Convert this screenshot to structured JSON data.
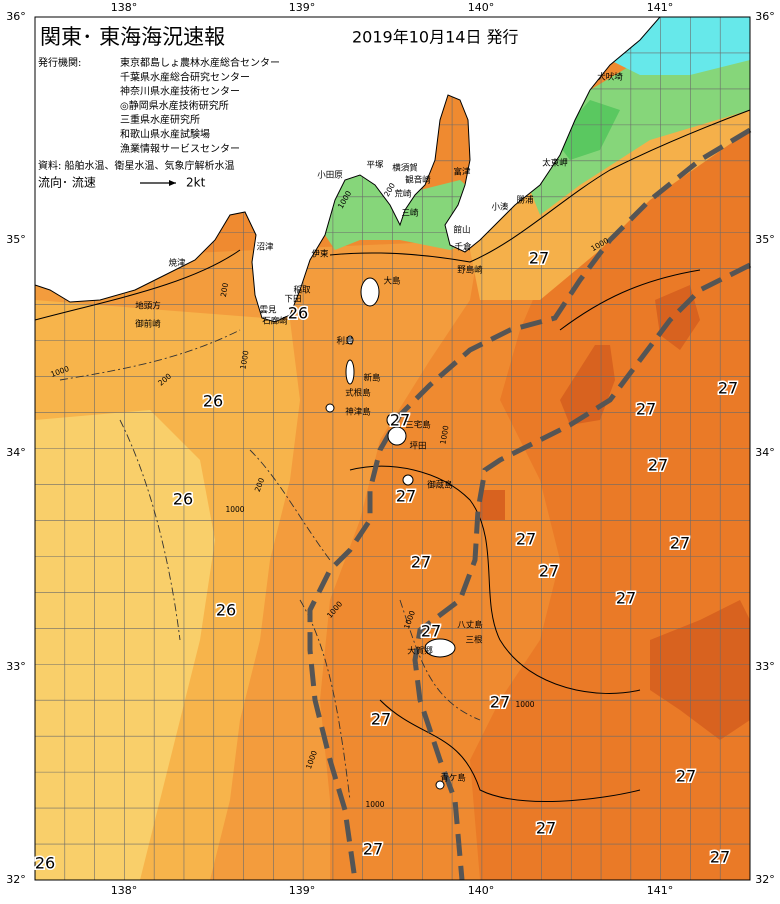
{
  "header": {
    "title": "関東･ 東海海況速報",
    "issued": "2019年10月14日 発行"
  },
  "publishers": {
    "label": "発行機関:",
    "items": [
      "東京都島しょ農林水産総合センター",
      "千葉県水産総合研究センター",
      "神奈川県水産技術センター",
      "◎静岡県水産技術研究所",
      "三重県水産研究所",
      "和歌山県水産試験場",
      "漁業情報サービスセンター"
    ]
  },
  "sources": "資料: 船舶水温、衛星水温、気象庁解析水温",
  "legend": {
    "flow": "流向･ 流速",
    "speed": "2kt"
  },
  "axes": {
    "longitudes": [
      "138°",
      "139°",
      "140°",
      "141°"
    ],
    "latitudes": [
      "36°",
      "35°",
      "34°",
      "33°",
      "32°"
    ]
  },
  "temperature_labels": [
    "26",
    "26",
    "26",
    "26",
    "26",
    "27",
    "27",
    "27",
    "27",
    "27",
    "27",
    "27",
    "27",
    "27",
    "27",
    "27",
    "27",
    "27",
    "27",
    "27",
    "27",
    "27",
    "27"
  ],
  "place_names": [
    "犬吠埼",
    "太東岬",
    "勝浦",
    "小湊",
    "館山",
    "千倉",
    "野島崎",
    "富津",
    "観音崎",
    "横須賀",
    "平塚",
    "小田原",
    "荒崎",
    "三崎",
    "伊東",
    "沼津",
    "焼津",
    "稲取",
    "下田",
    "雲見",
    "石廊崎",
    "地頭方",
    "御前崎",
    "大島",
    "利島",
    "新島",
    "式根島",
    "神津島",
    "三宅島",
    "坪田",
    "御蔵島",
    "八丈島",
    "三根",
    "大賀郷",
    "青ケ島"
  ],
  "depth_labels": [
    "1000",
    "200",
    "1000",
    "200",
    "1000",
    "200",
    "1000",
    "200",
    "1000",
    "1000",
    "1000",
    "1000",
    "1000",
    "1000",
    "1000"
  ]
}
